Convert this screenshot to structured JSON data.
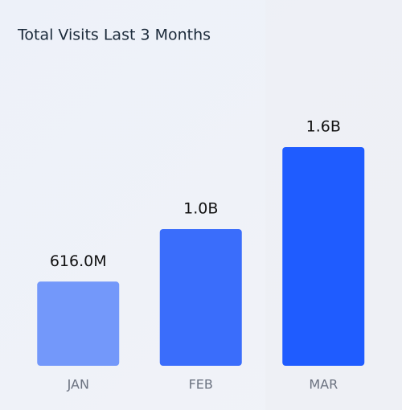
{
  "chart_data": {
    "type": "bar",
    "title": "Total Visits Last 3 Months",
    "categories": [
      "JAN",
      "FEB",
      "MAR"
    ],
    "values": [
      616000000,
      1000000000,
      1600000000
    ],
    "value_labels": [
      "616.0M",
      "1.0B",
      "1.6B"
    ],
    "colors": [
      "#7398fa",
      "#3a6dfb",
      "#1f5cff"
    ]
  }
}
